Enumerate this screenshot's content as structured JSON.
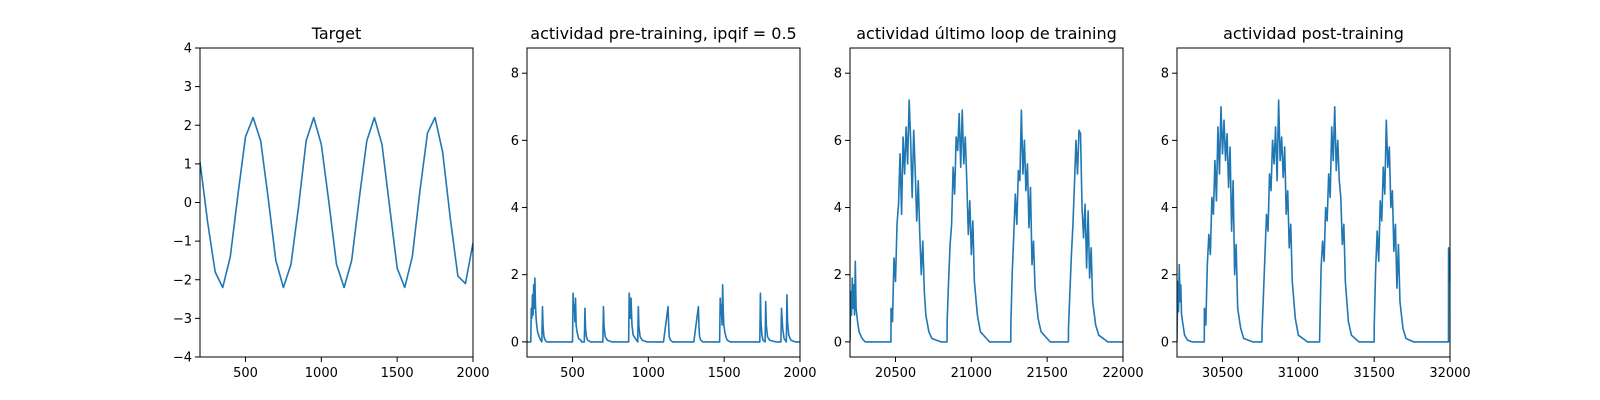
{
  "chart_data": [
    {
      "type": "line",
      "title": "Target",
      "xlim": [
        200,
        2000
      ],
      "ylim": [
        -4,
        4
      ],
      "xticks": [
        500,
        1000,
        1500,
        2000
      ],
      "yticks": [
        -4,
        -3,
        -2,
        -1,
        0,
        1,
        2,
        3,
        4
      ],
      "xtick_labels": [
        "500",
        "1000",
        "1500",
        "2000"
      ],
      "ytick_labels": [
        "−4",
        "−3",
        "−2",
        "−1",
        "0",
        "1",
        "2",
        "3",
        "4"
      ],
      "color": "#1f77b4",
      "series": [
        {
          "x": [
            200,
            250,
            300,
            350,
            400,
            450,
            500,
            550,
            600,
            650,
            700,
            750,
            800,
            850,
            900,
            950,
            1000,
            1050,
            1100,
            1150,
            1200,
            1250,
            1300,
            1350,
            1400,
            1450,
            1500,
            1550,
            1600,
            1650,
            1700,
            1750,
            1800,
            1850,
            1900,
            1950,
            2000
          ],
          "y": [
            1.05,
            -0.5,
            -1.8,
            -2.2,
            -1.4,
            0.2,
            1.7,
            2.2,
            1.6,
            0.1,
            -1.5,
            -2.2,
            -1.6,
            -0.1,
            1.6,
            2.2,
            1.5,
            0.0,
            -1.6,
            -2.2,
            -1.5,
            0.1,
            1.6,
            2.2,
            1.5,
            -0.1,
            -1.7,
            -2.2,
            -1.4,
            0.3,
            1.8,
            2.2,
            1.3,
            -0.4,
            -1.9,
            -2.1,
            -1.05
          ]
        }
      ]
    },
    {
      "type": "line",
      "title": "actividad pre-training, ipqif = 0.5",
      "xlim": [
        200,
        2000
      ],
      "ylim": [
        -0.45,
        8.75
      ],
      "xticks": [
        500,
        1000,
        1500,
        2000
      ],
      "yticks": [
        0,
        2,
        4,
        6,
        8
      ],
      "xtick_labels": [
        "500",
        "1000",
        "1500",
        "2000"
      ],
      "ytick_labels": [
        "0",
        "2",
        "4",
        "6",
        "8"
      ],
      "color": "#1f77b4",
      "series": [
        {
          "x": [
            200,
            225,
            228,
            232,
            236,
            240,
            244,
            248,
            252,
            256,
            260,
            264,
            270,
            280,
            290,
            298,
            302,
            306,
            312,
            320,
            330,
            350,
            400,
            470,
            500,
            504,
            508,
            512,
            516,
            520,
            524,
            530,
            540,
            555,
            560,
            578,
            582,
            586,
            592,
            600,
            620,
            680,
            700,
            704,
            708,
            716,
            730,
            760,
            800,
            860,
            870,
            874,
            878,
            882,
            886,
            892,
            900,
            930,
            934,
            938,
            946,
            960,
            990,
            1060,
            1100,
            1130,
            1134,
            1138,
            1146,
            1160,
            1190,
            1240,
            1300,
            1330,
            1334,
            1338,
            1346,
            1360,
            1400,
            1440,
            1470,
            1474,
            1478,
            1482,
            1486,
            1490,
            1494,
            1498,
            1504,
            1512,
            1520,
            1540,
            1560,
            1640,
            1700,
            1735,
            1739,
            1743,
            1749,
            1756,
            1770,
            1774,
            1778,
            1786,
            1800,
            1840,
            1870,
            1874,
            1878,
            1886,
            1895,
            1910,
            1914,
            1918,
            1926,
            1940,
            1970,
            2000
          ],
          "y": [
            0,
            0,
            1.0,
            0.7,
            1.4,
            0.8,
            1.7,
            1.0,
            1.9,
            1.1,
            0.7,
            0.5,
            0.3,
            0.15,
            0.05,
            0,
            1.05,
            0.45,
            0.15,
            0.05,
            0,
            0,
            0,
            0,
            0,
            1.45,
            0.9,
            1.1,
            0.6,
            1.3,
            0.5,
            0.3,
            0.1,
            0.05,
            0,
            0,
            1.0,
            0.4,
            0.15,
            0.05,
            0,
            0,
            0,
            1.05,
            0.45,
            0.15,
            0.05,
            0,
            0,
            0,
            0,
            1.45,
            1.0,
            0.7,
            1.3,
            0.5,
            0.2,
            0,
            1.05,
            0.45,
            0.15,
            0.05,
            0,
            0,
            0,
            1.05,
            0.5,
            0.15,
            0.05,
            0,
            0,
            0,
            0,
            1.05,
            0.45,
            0.15,
            0.05,
            0,
            0,
            0,
            0,
            1.3,
            0.8,
            1.1,
            0.5,
            1.7,
            0.9,
            0.5,
            0.3,
            0.15,
            0.05,
            0,
            0,
            0,
            0,
            0,
            1.45,
            0.6,
            0.2,
            0.05,
            0,
            1.2,
            0.5,
            0.15,
            0.05,
            0,
            0,
            0,
            1.0,
            0.4,
            0.1,
            0,
            1.4,
            0.6,
            0.2,
            0.05,
            0,
            0
          ]
        }
      ]
    },
    {
      "type": "line",
      "title": "actividad último loop de training",
      "xlim": [
        20200,
        22000
      ],
      "ylim": [
        -0.45,
        8.75
      ],
      "xticks": [
        20500,
        21000,
        21500,
        22000
      ],
      "yticks": [
        0,
        2,
        4,
        6,
        8
      ],
      "xtick_labels": [
        "20500",
        "21000",
        "21500",
        "22000"
      ],
      "ytick_labels": [
        "0",
        "2",
        "4",
        "6",
        "8"
      ],
      "color": "#1f77b4",
      "series": [
        {
          "x": [
            20200,
            20205,
            20210,
            20215,
            20220,
            20225,
            20230,
            20235,
            20240,
            20250,
            20260,
            20280,
            20300,
            20360,
            20400,
            20440,
            20470,
            20470.5,
            20480,
            20490,
            20500,
            20510,
            20520,
            20530,
            20540,
            20550,
            20560,
            20570,
            20580,
            20590,
            20600,
            20610,
            20620,
            20630,
            20640,
            20650,
            20660,
            20670,
            20680,
            20690,
            20700,
            20720,
            20740,
            20800,
            20840,
            20840.5,
            20850,
            20860,
            20870,
            20880,
            20890,
            20900,
            20910,
            20920,
            20930,
            20940,
            20950,
            20960,
            20970,
            20980,
            20990,
            21000,
            21010,
            21020,
            21040,
            21060,
            21120,
            21200,
            21260,
            21260.5,
            21270,
            21280,
            21290,
            21300,
            21310,
            21320,
            21330,
            21340,
            21350,
            21360,
            21370,
            21380,
            21390,
            21400,
            21410,
            21420,
            21440,
            21460,
            21520,
            21580,
            21640,
            21640.5,
            21650,
            21660,
            21670,
            21680,
            21690,
            21700,
            21710,
            21720,
            21730,
            21740,
            21750,
            21760,
            21770,
            21780,
            21790,
            21800,
            21820,
            21840,
            21900,
            21960,
            22000
          ],
          "y": [
            0,
            1.5,
            0.8,
            1.9,
            1.0,
            1.7,
            0.8,
            2.4,
            1.0,
            0.6,
            0.3,
            0.1,
            0,
            0,
            0,
            0,
            0,
            1.0,
            0.6,
            2.5,
            1.8,
            3.5,
            4.1,
            5.6,
            3.8,
            6.1,
            5.0,
            6.4,
            5.3,
            7.2,
            6.0,
            4.3,
            6.3,
            5.1,
            3.6,
            4.8,
            3.2,
            2.0,
            3.0,
            1.5,
            0.8,
            0.3,
            0.1,
            0,
            0,
            0.6,
            1.8,
            2.9,
            3.5,
            5.2,
            4.4,
            6.1,
            5.7,
            6.8,
            5.2,
            6.9,
            5.3,
            6.1,
            4.8,
            3.2,
            4.2,
            2.6,
            3.6,
            1.8,
            0.8,
            0.3,
            0,
            0,
            0,
            0.5,
            2.1,
            3.2,
            4.4,
            3.5,
            5.1,
            4.8,
            6.9,
            5.0,
            6.0,
            4.5,
            5.3,
            3.4,
            4.6,
            2.3,
            3.0,
            1.6,
            0.7,
            0.3,
            0,
            0,
            0,
            0.4,
            1.5,
            2.6,
            3.5,
            4.7,
            6.0,
            5.0,
            6.3,
            6.2,
            4.0,
            3.1,
            4.1,
            2.2,
            3.9,
            1.9,
            2.8,
            1.2,
            0.5,
            0.2,
            0,
            0,
            0
          ]
        }
      ]
    },
    {
      "type": "line",
      "title": "actividad post-training",
      "xlim": [
        30200,
        32000
      ],
      "ylim": [
        -0.45,
        8.75
      ],
      "xticks": [
        30500,
        31000,
        31500,
        32000
      ],
      "yticks": [
        0,
        2,
        4,
        6,
        8
      ],
      "xtick_labels": [
        "30500",
        "31000",
        "31500",
        "32000"
      ],
      "ytick_labels": [
        "0",
        "2",
        "4",
        "6",
        "8"
      ],
      "color": "#1f77b4",
      "series": [
        {
          "x": [
            30200,
            30205,
            30210,
            30215,
            30220,
            30225,
            30230,
            30240,
            30250,
            30270,
            30300,
            30360,
            30380,
            30380.5,
            30390,
            30400,
            30410,
            30420,
            30430,
            30440,
            30450,
            30460,
            30470,
            30480,
            30490,
            30500,
            30510,
            30520,
            30530,
            30540,
            30550,
            30560,
            30570,
            30580,
            30590,
            30600,
            30620,
            30640,
            30700,
            30760,
            30760.5,
            30770,
            30780,
            30790,
            30800,
            30810,
            30820,
            30830,
            30840,
            30850,
            30860,
            30870,
            30880,
            30890,
            30900,
            30910,
            30920,
            30930,
            30940,
            30950,
            30960,
            30980,
            31000,
            31060,
            31120,
            31140,
            31150,
            31160,
            31170,
            31180,
            31190,
            31200,
            31210,
            31220,
            31230,
            31240,
            31250,
            31260,
            31270,
            31280,
            31290,
            31300,
            31310,
            31330,
            31350,
            31400,
            31460,
            31500,
            31500.5,
            31510,
            31520,
            31530,
            31540,
            31550,
            31560,
            31570,
            31580,
            31590,
            31600,
            31610,
            31620,
            31630,
            31640,
            31650,
            31660,
            31670,
            31690,
            31710,
            31760,
            31820,
            31900,
            31990,
            31990.5,
            31995,
            32000
          ],
          "y": [
            0,
            1.8,
            0.9,
            2.3,
            1.2,
            1.7,
            0.8,
            0.5,
            0.2,
            0.05,
            0,
            0,
            0,
            1.0,
            0.5,
            2.3,
            3.2,
            2.6,
            4.3,
            3.8,
            5.4,
            4.2,
            6.4,
            5.0,
            7.0,
            5.6,
            6.6,
            5.4,
            6.2,
            4.6,
            5.8,
            3.3,
            4.8,
            2.0,
            2.9,
            1.0,
            0.4,
            0.1,
            0,
            0,
            0.3,
            1.4,
            2.6,
            3.8,
            3.3,
            5.0,
            4.5,
            6.0,
            5.3,
            6.4,
            4.8,
            7.2,
            5.4,
            6.1,
            4.9,
            5.8,
            3.8,
            4.5,
            2.8,
            3.5,
            1.8,
            0.7,
            0.2,
            0,
            0,
            0,
            2.2,
            3.0,
            2.4,
            4.0,
            3.6,
            5.0,
            4.3,
            6.4,
            5.4,
            7.0,
            5.1,
            6.0,
            4.8,
            4.3,
            2.9,
            3.5,
            1.8,
            0.6,
            0.2,
            0,
            0,
            0,
            0.5,
            2.2,
            3.3,
            2.4,
            4.2,
            3.6,
            5.2,
            4.4,
            6.6,
            5.2,
            5.8,
            4.0,
            4.5,
            2.7,
            3.5,
            1.6,
            2.9,
            1.2,
            0.4,
            0.1,
            0,
            0,
            0,
            0,
            2.8,
            1.8,
            2.3
          ]
        }
      ]
    }
  ]
}
